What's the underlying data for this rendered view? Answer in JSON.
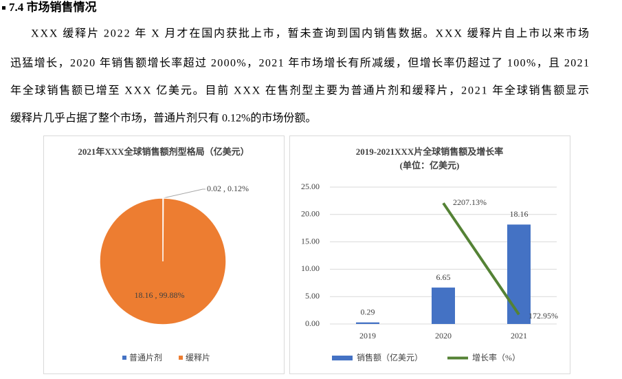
{
  "heading": "7.4 市场销售情况",
  "paragraph": [
    "XXX 缓释片 2022 年 X 月才在国内获批上市，暂未查询到国内销售数据。XXX 缓释片自上市以来市场",
    "迅猛增长，2020 年销售额增长率超过 2000%，2021 年市场增长有所减缓，但增长率仍超过了 100%，且 2021",
    "年全球销售额已增至 XXX 亿美元。目前 XXX 在售剂型主要为普通片剂和缓释片，2021 年全球销售额显示",
    "缓释片几乎占据了整个市场，普通片剂只有 0.12%的市场份额。"
  ],
  "chart_data": [
    {
      "type": "pie",
      "title": "2021年XXX全球销售额剂型格局（亿美元）",
      "categories": [
        "普通片剂",
        "缓释片"
      ],
      "values": [
        0.02,
        18.16
      ],
      "value_labels": [
        "0.02 , 0.12%",
        "18.16 , 99.88%"
      ],
      "colors": [
        "#4472c4",
        "#ed7d31"
      ],
      "legend": "bottom"
    },
    {
      "type": "bar",
      "title": "2019-2021XXX片全球销售额及增长率",
      "subtitle": "(单位：亿美元)",
      "categories": [
        "2019",
        "2020",
        "2021"
      ],
      "ylim": [
        0,
        25
      ],
      "yticks": [
        {
          "value": 0,
          "label": "0.00"
        },
        {
          "value": 5,
          "label": "5.00"
        },
        {
          "value": 10,
          "label": "10.00"
        },
        {
          "value": 15,
          "label": "15.00"
        },
        {
          "value": 20,
          "label": "20.00"
        },
        {
          "value": 25,
          "label": "25.00"
        }
      ],
      "y2lim": [
        0,
        2500
      ],
      "grid": true,
      "legend": "bottom",
      "series": [
        {
          "name": "销售额（亿美元）",
          "type": "bar",
          "color": "#4472c4",
          "values": [
            0.29,
            6.65,
            18.16
          ],
          "value_labels": [
            "0.29",
            "6.65",
            "18.16"
          ]
        },
        {
          "name": "增长率（%）",
          "type": "line",
          "axis": "y2",
          "color": "#548235",
          "values": [
            null,
            2207.13,
            172.95
          ],
          "value_labels": [
            null,
            "2207.13%",
            "172.95%"
          ]
        }
      ]
    }
  ]
}
